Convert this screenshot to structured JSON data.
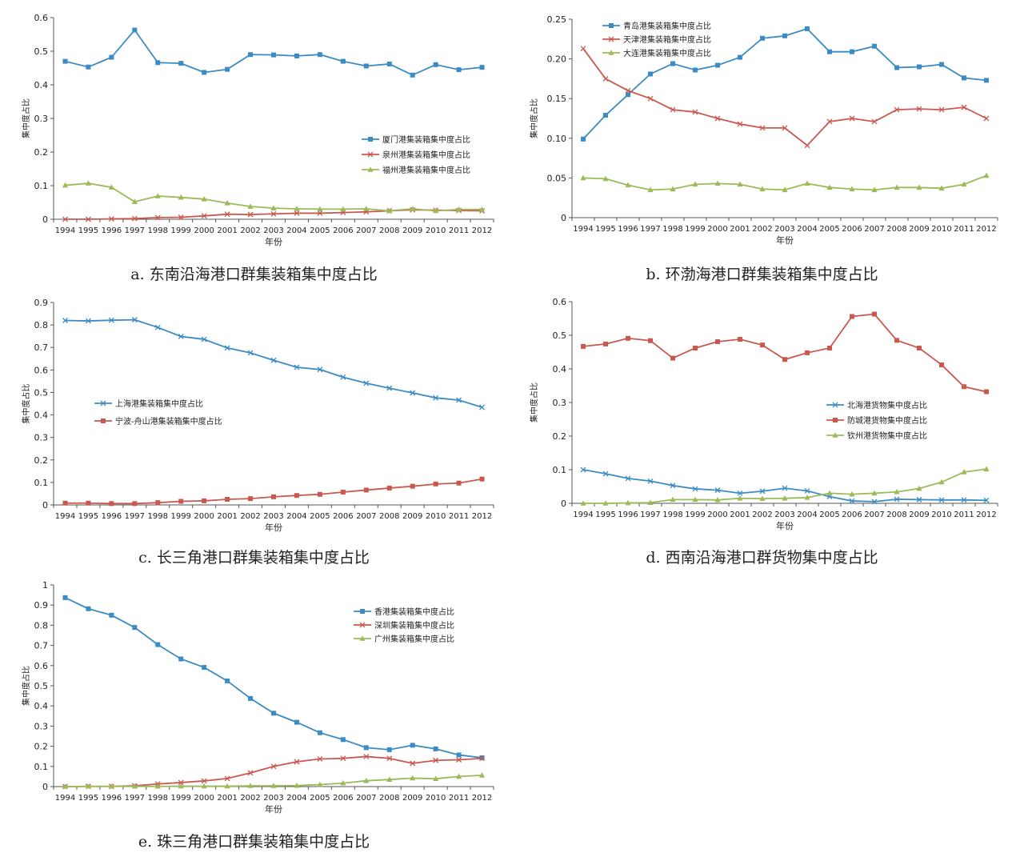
{
  "colors": {
    "blue": "#3b8bc4",
    "red": "#c9584f",
    "green": "#9bbb59"
  },
  "panels": [
    {
      "id": "a",
      "caption": "a. 东南沿海港口群集装箱集中度占比",
      "chart_data": {
        "type": "line",
        "categories": [
          "1994",
          "1995",
          "1996",
          "1997",
          "1998",
          "1999",
          "2000",
          "2001",
          "2002",
          "2003",
          "2004",
          "2005",
          "2006",
          "2007",
          "2008",
          "2009",
          "2010",
          "2011",
          "2012"
        ],
        "xlabel": "年份",
        "ylabel": "集中度占比",
        "ylim": [
          0,
          0.6
        ],
        "yticks": [
          "0",
          "0.1",
          "0.2",
          "0.3",
          "0.4",
          "0.5",
          "0.6"
        ],
        "legend_position": "center-right",
        "series": [
          {
            "name": "厦门港集装箱集中度占比",
            "color": "blue",
            "marker": "square",
            "values": [
              0.47,
              0.453,
              0.482,
              0.563,
              0.466,
              0.464,
              0.437,
              0.446,
              0.49,
              0.489,
              0.486,
              0.49,
              0.47,
              0.456,
              0.462,
              0.429,
              0.46,
              0.445,
              0.452
            ]
          },
          {
            "name": "泉州港集装箱集中度占比",
            "color": "red",
            "marker": "x",
            "values": [
              0.0,
              0.0,
              0.001,
              0.002,
              0.005,
              0.006,
              0.01,
              0.015,
              0.014,
              0.016,
              0.018,
              0.018,
              0.02,
              0.022,
              0.025,
              0.028,
              0.027,
              0.026,
              0.025
            ]
          },
          {
            "name": "福州港集装箱集中度占比",
            "color": "green",
            "marker": "triangle",
            "values": [
              0.101,
              0.107,
              0.095,
              0.052,
              0.069,
              0.065,
              0.06,
              0.048,
              0.038,
              0.033,
              0.031,
              0.03,
              0.03,
              0.031,
              0.025,
              0.031,
              0.025,
              0.029,
              0.029
            ]
          }
        ]
      }
    },
    {
      "id": "b",
      "caption": "b. 环渤海港口群集装箱集中度占比",
      "chart_data": {
        "type": "line",
        "categories": [
          "1994",
          "1995",
          "1996",
          "1997",
          "1998",
          "1999",
          "2000",
          "2001",
          "2002",
          "2003",
          "2004",
          "2005",
          "2006",
          "2007",
          "2008",
          "2009",
          "2010",
          "2011",
          "2012"
        ],
        "xlabel": "年份",
        "ylabel": "集中度占比",
        "ylim": [
          0,
          0.25
        ],
        "yticks": [
          "0",
          "0.05",
          "0.10",
          "0.15",
          "0.20",
          "0.25"
        ],
        "legend_position": "top-left",
        "series": [
          {
            "name": "青岛港集装箱集中度占比",
            "color": "blue",
            "marker": "square",
            "values": [
              0.099,
              0.129,
              0.155,
              0.181,
              0.194,
              0.186,
              0.192,
              0.202,
              0.226,
              0.229,
              0.238,
              0.209,
              0.209,
              0.216,
              0.189,
              0.19,
              0.193,
              0.176,
              0.173
            ]
          },
          {
            "name": "天津港集装箱集中度占比",
            "color": "red",
            "marker": "x",
            "values": [
              0.213,
              0.175,
              0.16,
              0.15,
              0.136,
              0.133,
              0.125,
              0.118,
              0.113,
              0.113,
              0.091,
              0.121,
              0.125,
              0.121,
              0.136,
              0.137,
              0.136,
              0.139,
              0.125
            ]
          },
          {
            "name": "大连港集装箱集中度占比",
            "color": "green",
            "marker": "triangle",
            "values": [
              0.05,
              0.049,
              0.041,
              0.035,
              0.036,
              0.042,
              0.043,
              0.042,
              0.036,
              0.035,
              0.043,
              0.038,
              0.036,
              0.035,
              0.038,
              0.038,
              0.037,
              0.042,
              0.053
            ]
          }
        ]
      }
    },
    {
      "id": "c",
      "caption": "c. 长三角港口群集装箱集中度占比",
      "chart_data": {
        "type": "line",
        "categories": [
          "1994",
          "1995",
          "1996",
          "1997",
          "1998",
          "1999",
          "2000",
          "2001",
          "2002",
          "2003",
          "2004",
          "2005",
          "2006",
          "2007",
          "2008",
          "2009",
          "2010",
          "2011",
          "2012"
        ],
        "xlabel": "年份",
        "ylabel": "集中度占比",
        "ylim": [
          0,
          0.9
        ],
        "yticks": [
          "0",
          "0.1",
          "0.2",
          "0.3",
          "0.4",
          "0.5",
          "0.6",
          "0.7",
          "0.8",
          "0.9"
        ],
        "legend_position": "center-left",
        "series": [
          {
            "name": "上海港集装箱集中度占比",
            "color": "blue",
            "marker": "x",
            "values": [
              0.82,
              0.818,
              0.821,
              0.823,
              0.789,
              0.749,
              0.736,
              0.698,
              0.676,
              0.643,
              0.612,
              0.602,
              0.568,
              0.541,
              0.519,
              0.498,
              0.476,
              0.466,
              0.434
            ]
          },
          {
            "name": "宁波-舟山港集装箱集中度占比",
            "color": "red",
            "marker": "square",
            "values": [
              0.008,
              0.008,
              0.006,
              0.006,
              0.01,
              0.016,
              0.018,
              0.025,
              0.028,
              0.036,
              0.042,
              0.047,
              0.057,
              0.066,
              0.075,
              0.083,
              0.093,
              0.097,
              0.115
            ]
          }
        ]
      }
    },
    {
      "id": "d",
      "caption": "d. 西南沿海港口群货物集中度占比",
      "chart_data": {
        "type": "line",
        "categories": [
          "1994",
          "1995",
          "1996",
          "1997",
          "1998",
          "1999",
          "2000",
          "2001",
          "2002",
          "2003",
          "2004",
          "2005",
          "2006",
          "2007",
          "2008",
          "2009",
          "2010",
          "2011",
          "2012"
        ],
        "xlabel": "年份",
        "ylabel": "集中度占比",
        "ylim": [
          0,
          0.6
        ],
        "yticks": [
          "0",
          "0.1",
          "0.2",
          "0.3",
          "0.4",
          "0.5",
          "0.6"
        ],
        "legend_position": "center-right",
        "series": [
          {
            "name": "北海港货物集中度占比",
            "color": "blue",
            "marker": "x",
            "values": [
              0.1,
              0.088,
              0.074,
              0.066,
              0.053,
              0.043,
              0.039,
              0.03,
              0.036,
              0.045,
              0.037,
              0.02,
              0.007,
              0.005,
              0.012,
              0.011,
              0.01,
              0.01,
              0.009
            ]
          },
          {
            "name": "防城港货物集中度占比",
            "color": "red",
            "marker": "square",
            "values": [
              0.467,
              0.474,
              0.491,
              0.484,
              0.432,
              0.462,
              0.481,
              0.488,
              0.471,
              0.428,
              0.448,
              0.462,
              0.556,
              0.563,
              0.485,
              0.462,
              0.412,
              0.347,
              0.332
            ]
          },
          {
            "name": "钦州港货物集中度占比",
            "color": "green",
            "marker": "triangle",
            "values": [
              0.0,
              0.0,
              0.001,
              0.002,
              0.011,
              0.011,
              0.01,
              0.015,
              0.014,
              0.015,
              0.017,
              0.03,
              0.027,
              0.03,
              0.034,
              0.044,
              0.063,
              0.093,
              0.102
            ]
          }
        ]
      }
    },
    {
      "id": "e",
      "caption": "e. 珠三角港口群集装箱集中度占比",
      "chart_data": {
        "type": "line",
        "categories": [
          "1994",
          "1995",
          "1996",
          "1997",
          "1998",
          "1999",
          "2000",
          "2001",
          "2002",
          "2003",
          "2004",
          "2005",
          "2006",
          "2007",
          "2008",
          "2009",
          "2010",
          "2011",
          "2012"
        ],
        "xlabel": "年份",
        "ylabel": "集中度占比",
        "ylim": [
          0,
          1
        ],
        "yticks": [
          "0",
          "0.1",
          "0.2",
          "0.3",
          "0.4",
          "0.5",
          "0.6",
          "0.7",
          "0.8",
          "0.9",
          "1"
        ],
        "legend_position": "top-right",
        "series": [
          {
            "name": "香港集装箱集中度占比",
            "color": "blue",
            "marker": "square",
            "values": [
              0.937,
              0.882,
              0.85,
              0.789,
              0.704,
              0.633,
              0.591,
              0.524,
              0.437,
              0.364,
              0.319,
              0.267,
              0.233,
              0.193,
              0.183,
              0.205,
              0.187,
              0.157,
              0.143
            ]
          },
          {
            "name": "深圳集装箱集中度占比",
            "color": "red",
            "marker": "x",
            "values": [
              0.0,
              0.001,
              0.001,
              0.004,
              0.013,
              0.02,
              0.028,
              0.04,
              0.068,
              0.1,
              0.123,
              0.137,
              0.14,
              0.149,
              0.14,
              0.115,
              0.13,
              0.133,
              0.14
            ]
          },
          {
            "name": "广州集装箱集中度占比",
            "color": "green",
            "marker": "triangle",
            "values": [
              0.0,
              0.001,
              0.001,
              0.001,
              0.001,
              0.002,
              0.002,
              0.002,
              0.004,
              0.004,
              0.005,
              0.01,
              0.017,
              0.029,
              0.035,
              0.042,
              0.039,
              0.05,
              0.056
            ]
          }
        ]
      }
    }
  ]
}
